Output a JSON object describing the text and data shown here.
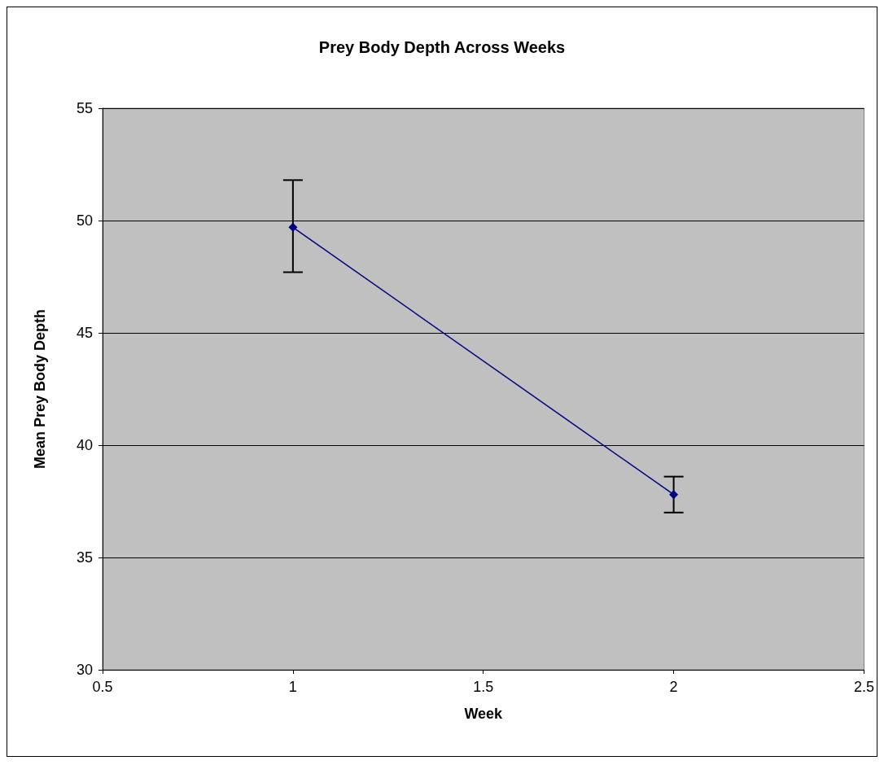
{
  "chart_data": {
    "type": "line",
    "title": "Prey Body Depth Across Weeks",
    "xlabel": "Week",
    "ylabel": "Mean Prey Body Depth",
    "x": [
      1,
      2
    ],
    "series": [
      {
        "color": "#000080",
        "values": [
          49.7,
          37.8
        ],
        "errors": [
          [
            47.7,
            51.8
          ],
          [
            37.0,
            38.6
          ]
        ]
      }
    ],
    "xlim": [
      0.5,
      2.5
    ],
    "xticks": [
      0.5,
      1,
      1.5,
      2,
      2.5
    ],
    "ylim": [
      30,
      55
    ],
    "yticks": [
      30,
      35,
      40,
      45,
      50,
      55
    ],
    "grid": "y",
    "marker": "diamond",
    "line_style": "solid"
  }
}
